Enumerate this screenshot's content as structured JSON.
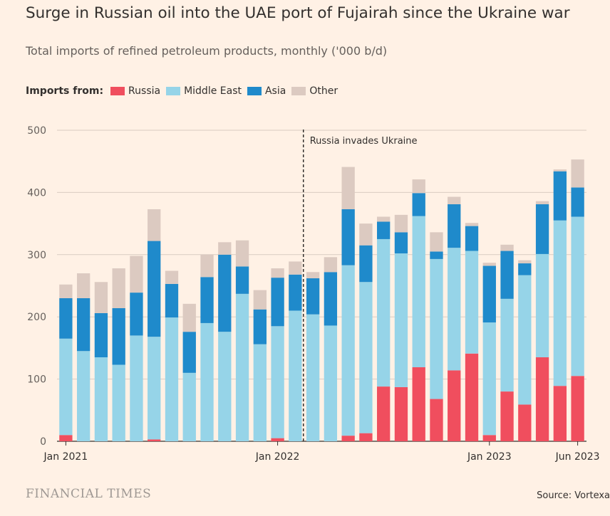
{
  "title": "Surge in Russian oil into the UAE port of Fujairah since the Ukraine war",
  "subtitle": "Total imports of refined petroleum products, monthly ('000 b/d)",
  "legend": {
    "title": "Imports from:",
    "items": [
      {
        "label": "Russia",
        "color": "#F04E5E"
      },
      {
        "label": "Middle East",
        "color": "#96D4E8"
      },
      {
        "label": "Asia",
        "color": "#1F8ACB"
      },
      {
        "label": "Other",
        "color": "#DCCAC1"
      }
    ]
  },
  "source": "Source: Vortexa",
  "logo": "FINANCIAL TIMES",
  "chart_data": {
    "type": "bar",
    "stacked": true,
    "categories": [
      "2021-01",
      "2021-02",
      "2021-03",
      "2021-04",
      "2021-05",
      "2021-06",
      "2021-07",
      "2021-08",
      "2021-09",
      "2021-10",
      "2021-11",
      "2021-12",
      "2022-01",
      "2022-02",
      "2022-03",
      "2022-04",
      "2022-05",
      "2022-06",
      "2022-07",
      "2022-08",
      "2022-09",
      "2022-10",
      "2022-11",
      "2022-12",
      "2023-01",
      "2023-02",
      "2023-03",
      "2023-04",
      "2023-05",
      "2023-06"
    ],
    "series": [
      {
        "name": "Russia",
        "color": "#F04E5E",
        "values": [
          10,
          0,
          0,
          0,
          0,
          3,
          0,
          0,
          0,
          0,
          0,
          0,
          5,
          0,
          0,
          0,
          9,
          13,
          88,
          87,
          119,
          68,
          114,
          141,
          10,
          80,
          59,
          135,
          89,
          105
        ]
      },
      {
        "name": "Middle East",
        "color": "#96D4E8",
        "values": [
          155,
          145,
          135,
          123,
          170,
          165,
          199,
          110,
          190,
          176,
          237,
          156,
          180,
          210,
          204,
          186,
          274,
          243,
          237,
          215,
          243,
          225,
          197,
          165,
          181,
          149,
          208,
          166,
          266,
          256
        ]
      },
      {
        "name": "Asia",
        "color": "#1F8ACB",
        "values": [
          65,
          85,
          71,
          91,
          69,
          154,
          54,
          66,
          74,
          124,
          44,
          56,
          78,
          58,
          58,
          86,
          90,
          59,
          28,
          34,
          37,
          12,
          70,
          40,
          91,
          77,
          19,
          80,
          79,
          47
        ]
      },
      {
        "name": "Other",
        "color": "#DCCAC1",
        "values": [
          22,
          40,
          50,
          64,
          59,
          51,
          21,
          45,
          36,
          20,
          42,
          31,
          15,
          21,
          10,
          24,
          68,
          35,
          8,
          28,
          22,
          31,
          12,
          5,
          5,
          10,
          5,
          5,
          3,
          45
        ]
      }
    ],
    "yticks": [
      0,
      100,
      200,
      300,
      400,
      500
    ],
    "ylim": [
      0,
      500
    ],
    "xtick_labels": [
      {
        "index": 0,
        "label": "Jan 2021"
      },
      {
        "index": 12,
        "label": "Jan 2022"
      },
      {
        "index": 24,
        "label": "Jan 2023"
      },
      {
        "index": 29,
        "label": "Jun 2023"
      }
    ],
    "annotation": {
      "label": "Russia invades Ukraine",
      "after_index": 13
    },
    "grid": true
  }
}
